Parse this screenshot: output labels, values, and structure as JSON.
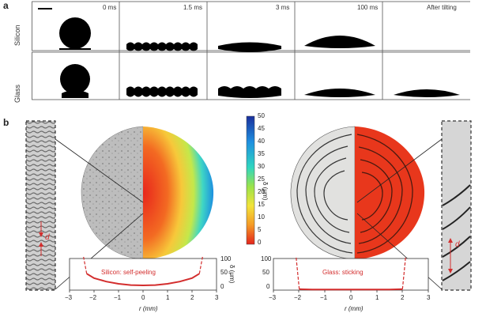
{
  "figure": {
    "panel_a_label": "a",
    "panel_b_label": "b",
    "time_labels": [
      "0 ms",
      "1.5 ms",
      "3 ms",
      "100 ms",
      "After tilting"
    ],
    "row_labels": [
      "Silicon",
      "Glass"
    ],
    "colorbar": {
      "ticks": [
        "50",
        "45",
        "40",
        "35",
        "30",
        "25",
        "20",
        "15",
        "10",
        "5",
        "0"
      ],
      "unit_label": "δ (μm)"
    },
    "plot_left": {
      "annotation": "Silicon: self-peeling",
      "y_ticks": [
        "100",
        "50",
        "0"
      ],
      "y_label": "δ (μm)"
    },
    "plot_right": {
      "annotation": "Glass: sticking",
      "y_ticks": [
        "100",
        "50",
        "0"
      ]
    },
    "x_axis": {
      "ticks": [
        "−3",
        "−2",
        "−1",
        "0",
        "1",
        "2",
        "3"
      ],
      "label": "r (mm)"
    },
    "inset_marker": "d"
  },
  "chart_data": [
    {
      "type": "line",
      "title": "Silicon: self-peeling",
      "xlabel": "r (mm)",
      "ylabel": "δ (μm)",
      "xlim": [
        -3,
        3
      ],
      "ylim": [
        0,
        100
      ],
      "x": [
        -2.3,
        -2.0,
        -1.5,
        -1.0,
        -0.5,
        0,
        0.5,
        1.0,
        1.5,
        2.0,
        2.3
      ],
      "series": [
        {
          "values": [
            52,
            38,
            27,
            20,
            16,
            15,
            16,
            20,
            27,
            38,
            52
          ]
        }
      ]
    },
    {
      "type": "line",
      "title": "Glass: sticking",
      "xlabel": "r (mm)",
      "ylabel": "δ (μm)",
      "xlim": [
        -3,
        3
      ],
      "ylim": [
        0,
        100
      ],
      "x": [
        -2.0,
        -1.5,
        -1.0,
        -0.5,
        0,
        0.5,
        1.0,
        1.5,
        2.0
      ],
      "series": [
        {
          "values": [
            3,
            2,
            2,
            2,
            2,
            2,
            2,
            2,
            3
          ]
        }
      ]
    }
  ]
}
